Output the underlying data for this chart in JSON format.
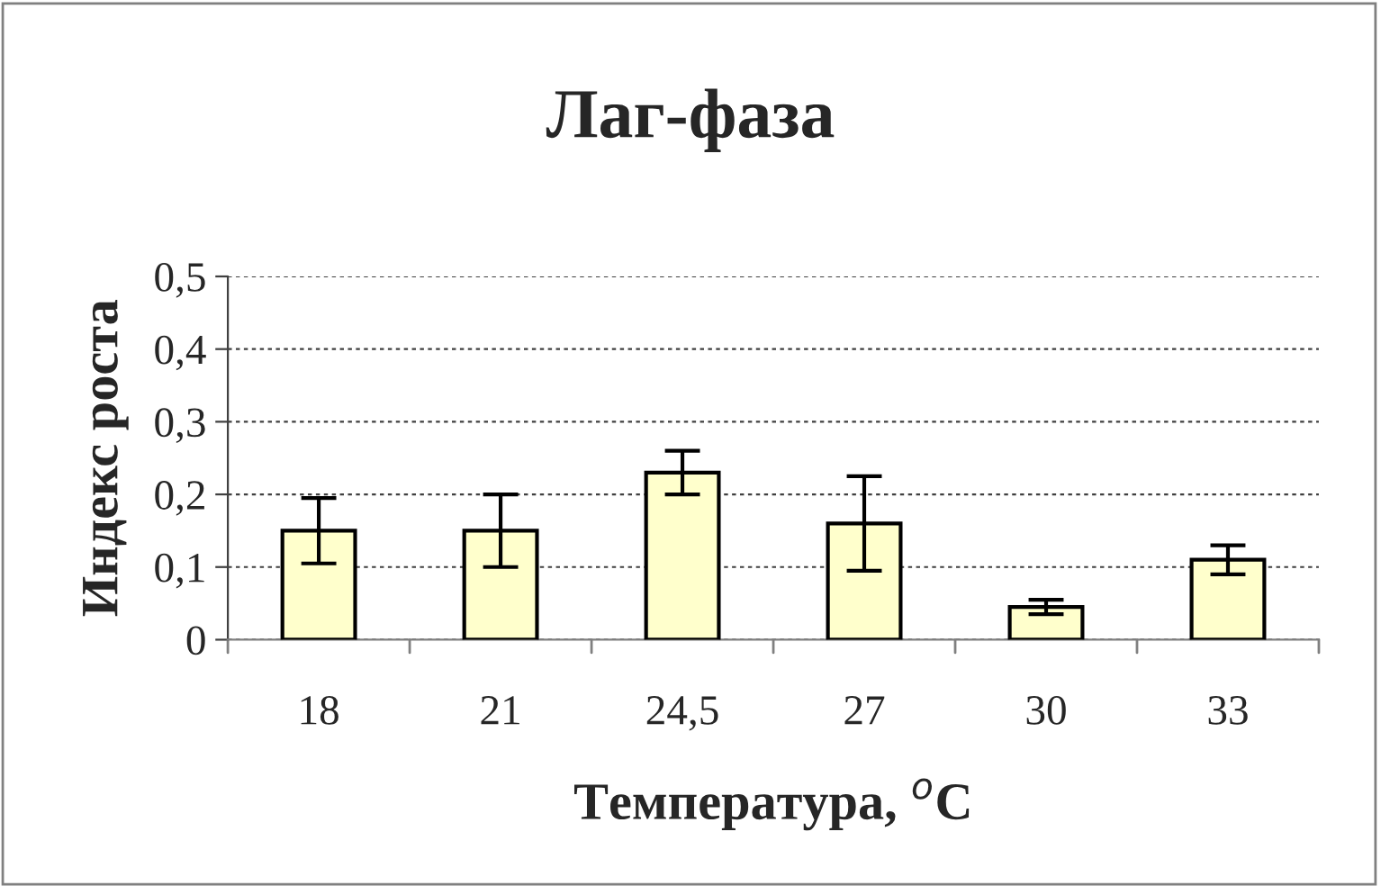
{
  "chart_data": {
    "type": "bar",
    "title": "Лаг-фаза",
    "xlabel": "Температура, $^{o}$C",
    "ylabel": "Индекс роста",
    "categories": [
      "18",
      "21",
      "24,5",
      "27",
      "30",
      "33"
    ],
    "values": [
      0.15,
      0.15,
      0.23,
      0.16,
      0.045,
      0.11
    ],
    "errors": [
      0.045,
      0.05,
      0.03,
      0.065,
      0.01,
      0.02
    ],
    "color": "#ffffcc",
    "ylim": [
      0,
      0.5
    ],
    "yticks": [
      0,
      {
        "value": 0.1,
        "label": "0,1"
      },
      {
        "value": 0.2,
        "label": "0,2"
      },
      {
        "value": 0.3,
        "label": "0,3"
      },
      {
        "value": 0.4,
        "label": "0,4"
      },
      {
        "value": 0.5,
        "label": "0,5"
      }
    ],
    "grid": "y",
    "legend": false
  }
}
